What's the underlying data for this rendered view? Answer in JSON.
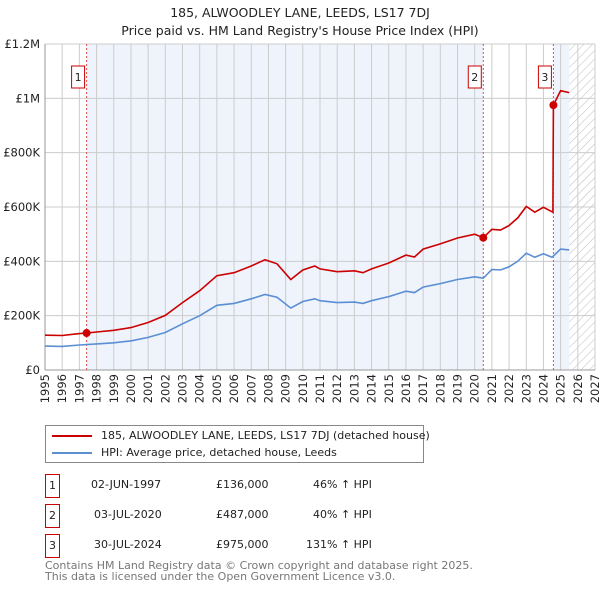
{
  "chart_data": {
    "type": "line",
    "title": "185, ALWOODLEY LANE, LEEDS, LS17 7DJ",
    "subtitle": "Price paid vs. HM Land Registry's House Price Index (HPI)",
    "xlim": [
      1995,
      2027
    ],
    "ylim": [
      0,
      1200000
    ],
    "x_ticks": [
      "1995",
      "1996",
      "1997",
      "1998",
      "1999",
      "2000",
      "2001",
      "2002",
      "2003",
      "2004",
      "2005",
      "2006",
      "2007",
      "2008",
      "2009",
      "2010",
      "2011",
      "2012",
      "2013",
      "2014",
      "2015",
      "2016",
      "2017",
      "2018",
      "2019",
      "2020",
      "2021",
      "2022",
      "2023",
      "2024",
      "2025",
      "2026",
      "2027"
    ],
    "y_ticks": [
      {
        "v": 0,
        "label": "£0"
      },
      {
        "v": 200000,
        "label": "£200K"
      },
      {
        "v": 400000,
        "label": "£400K"
      },
      {
        "v": 600000,
        "label": "£600K"
      },
      {
        "v": 800000,
        "label": "£800K"
      },
      {
        "v": 1000000,
        "label": "£1M"
      },
      {
        "v": 1200000,
        "label": "£1.2M"
      }
    ],
    "grid": true,
    "forecast_start": 2025.5,
    "series": [
      {
        "name": "185, ALWOODLEY LANE, LEEDS, LS17 7DJ (detached house)",
        "color": "#cc0000",
        "x": [
          1995,
          1996,
          1997,
          1997.42,
          1998,
          1999,
          2000,
          2001,
          2002,
          2003,
          2004,
          2005,
          2006,
          2007,
          2007.8,
          2008.5,
          2009.3,
          2010,
          2010.7,
          2011,
          2012,
          2013,
          2013.5,
          2014,
          2015,
          2016,
          2016.5,
          2017,
          2018,
          2019,
          2020,
          2020.5,
          2021,
          2021.5,
          2022,
          2022.5,
          2023,
          2023.5,
          2024,
          2024.55,
          2024.58,
          2025,
          2025.5
        ],
        "y": [
          128000,
          127000,
          134000,
          136000,
          140000,
          146000,
          156000,
          175000,
          201000,
          248000,
          292000,
          347000,
          358000,
          383000,
          406000,
          391000,
          333000,
          368000,
          383000,
          372000,
          362000,
          365000,
          358000,
          372000,
          394000,
          423000,
          416000,
          445000,
          464000,
          486000,
          500000,
          487000,
          518000,
          515000,
          532000,
          560000,
          602000,
          581000,
          599000,
          581000,
          975000,
          1028000,
          1021000
        ]
      },
      {
        "name": "HPI: Average price, detached house, Leeds",
        "color": "#5b8fd4",
        "x": [
          1995,
          1996,
          1997,
          1998,
          1999,
          2000,
          2001,
          2002,
          2003,
          2004,
          2005,
          2006,
          2007,
          2007.8,
          2008.5,
          2009.3,
          2010,
          2010.7,
          2011,
          2012,
          2013,
          2013.5,
          2014,
          2015,
          2016,
          2016.5,
          2017,
          2018,
          2019,
          2020,
          2020.5,
          2021,
          2021.5,
          2022,
          2022.5,
          2023,
          2023.5,
          2024,
          2024.5,
          2025,
          2025.5
        ],
        "y": [
          88000,
          87000,
          92000,
          96000,
          100000,
          107000,
          120000,
          138000,
          170000,
          200000,
          238000,
          245000,
          262000,
          278000,
          268000,
          228000,
          252000,
          262000,
          255000,
          248000,
          250000,
          245000,
          255000,
          270000,
          290000,
          285000,
          305000,
          318000,
          333000,
          343000,
          338000,
          370000,
          368000,
          380000,
          400000,
          430000,
          415000,
          428000,
          415000,
          445000,
          442000
        ]
      }
    ],
    "sales": [
      {
        "id": "1",
        "x": 1997.42,
        "y": 136000,
        "date": "02-JUN-1997",
        "price": "£136,000",
        "hpi": "46% ↑ HPI"
      },
      {
        "id": "2",
        "x": 2020.5,
        "y": 487000,
        "date": "03-JUL-2020",
        "price": "£487,000",
        "hpi": "40% ↑ HPI"
      },
      {
        "id": "3",
        "x": 2024.58,
        "y": 975000,
        "date": "30-JUL-2024",
        "price": "£975,000",
        "hpi": "131% ↑ HPI"
      }
    ],
    "legend_placement": "below"
  },
  "footer": {
    "line1": "Contains HM Land Registry data © Crown copyright and database right 2025.",
    "line2": "This data is licensed under the Open Government Licence v3.0."
  }
}
